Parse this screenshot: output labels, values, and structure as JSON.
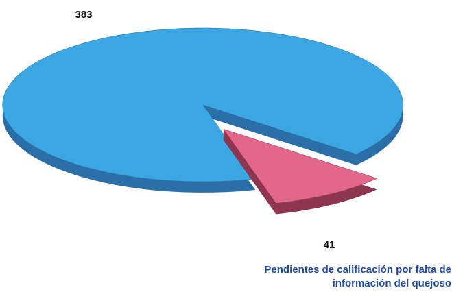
{
  "chart_data": {
    "type": "pie",
    "categories": [
      null,
      "Pendientes de calificación por falta de información del quejoso"
    ],
    "values": [
      383,
      41
    ],
    "colors": [
      "#3ba7e2",
      "#e2688a"
    ],
    "side_colors": [
      "#2a6fa8",
      "#8e3552"
    ]
  }
}
